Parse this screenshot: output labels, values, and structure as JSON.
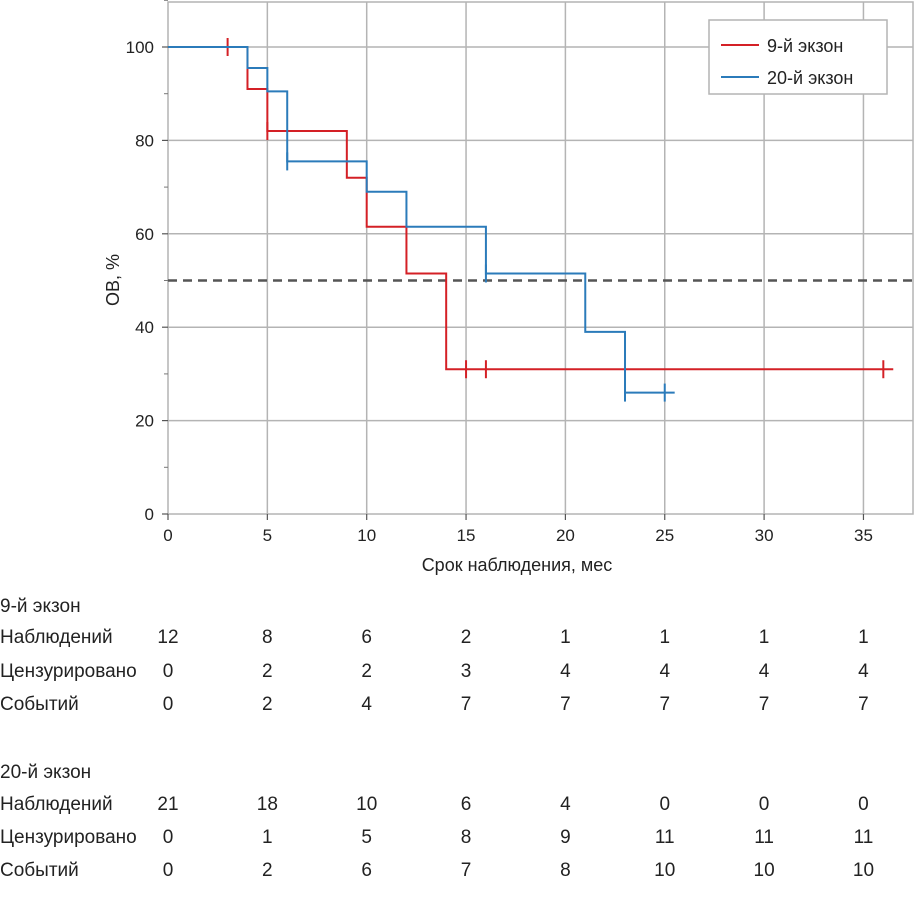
{
  "chart_data": {
    "type": "line",
    "subtype": "kaplan-meier",
    "xlabel": "Срок наблюдения, мес",
    "ylabel": "ОВ, %",
    "xlim": [
      0,
      37
    ],
    "ylim": [
      0,
      110
    ],
    "xticks": [
      "0",
      "5",
      "10",
      "15",
      "20",
      "25",
      "30",
      "35"
    ],
    "yticks": [
      "0",
      "20",
      "40",
      "60",
      "80",
      "100"
    ],
    "grid": true,
    "reference_line": {
      "y": 50,
      "style": "dashed"
    },
    "legend_position": "top-right",
    "series": [
      {
        "name": "9-й экзон",
        "color": "#d42026",
        "steps": [
          [
            0,
            100
          ],
          [
            4,
            91
          ],
          [
            5,
            82
          ],
          [
            9,
            72
          ],
          [
            10,
            61.5
          ],
          [
            12,
            51.5
          ],
          [
            14,
            31
          ],
          [
            36.5,
            31
          ]
        ],
        "censored": [
          [
            3,
            100
          ],
          [
            5,
            82
          ],
          [
            15,
            31
          ],
          [
            16,
            31
          ],
          [
            36,
            31
          ]
        ]
      },
      {
        "name": "20-й экзон",
        "color": "#2b7bba",
        "steps": [
          [
            0,
            100
          ],
          [
            4,
            95.5
          ],
          [
            5,
            90.5
          ],
          [
            6,
            75.5
          ],
          [
            10,
            69
          ],
          [
            12,
            61.5
          ],
          [
            16,
            51.5
          ],
          [
            21,
            39
          ],
          [
            23,
            26
          ],
          [
            25.5,
            26
          ]
        ],
        "censored": [
          [
            6,
            75.5
          ],
          [
            16,
            51.5
          ],
          [
            23,
            26
          ],
          [
            25,
            26
          ]
        ]
      }
    ],
    "risk_table": {
      "x_positions": [
        0,
        5,
        10,
        15,
        20,
        25,
        30,
        35
      ],
      "groups": [
        {
          "title": "9-й экзон",
          "rows": [
            {
              "label": "Наблюдений",
              "values": [
                "12",
                "8",
                "6",
                "2",
                "1",
                "1",
                "1",
                "1"
              ]
            },
            {
              "label": "Цензурировано",
              "values": [
                "0",
                "2",
                "2",
                "3",
                "4",
                "4",
                "4",
                "4"
              ]
            },
            {
              "label": "Событий",
              "values": [
                "0",
                "2",
                "4",
                "7",
                "7",
                "7",
                "7",
                "7"
              ]
            }
          ]
        },
        {
          "title": "20-й экзон",
          "rows": [
            {
              "label": "Наблюдений",
              "values": [
                "21",
                "18",
                "10",
                "6",
                "4",
                "0",
                "0",
                "0"
              ]
            },
            {
              "label": "Цензурировано",
              "values": [
                "0",
                "1",
                "5",
                "8",
                "9",
                "11",
                "11",
                "11"
              ]
            },
            {
              "label": "Событий",
              "values": [
                "0",
                "2",
                "6",
                "7",
                "8",
                "10",
                "10",
                "10"
              ]
            }
          ]
        }
      ]
    }
  }
}
